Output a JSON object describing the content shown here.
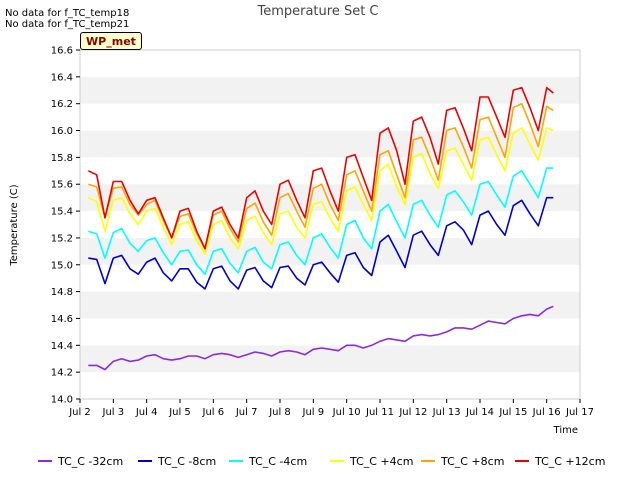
{
  "no_data_notes": [
    "No data for f_TC_temp18",
    "No data for f_TC_temp21"
  ],
  "station_label": "WP_met",
  "chart_data": {
    "type": "line",
    "title": "Temperature Set C",
    "xlabel": "Time",
    "ylabel": "Temperature (C)",
    "xlim": [
      2,
      17
    ],
    "ylim": [
      14.0,
      16.6
    ],
    "x_ticks": [
      2,
      3,
      4,
      5,
      6,
      7,
      8,
      9,
      10,
      11,
      12,
      13,
      14,
      15,
      16,
      17
    ],
    "x_tick_labels": [
      "Jul 2",
      "Jul 3",
      "Jul 4",
      "Jul 5",
      "Jul 6",
      "Jul 7",
      "Jul 8",
      "Jul 9",
      "Jul 10",
      "Jul 11",
      "Jul 12",
      "Jul 13",
      "Jul 14",
      "Jul 15",
      "Jul 16",
      "Jul 17"
    ],
    "y_ticks": [
      14.0,
      14.2,
      14.4,
      14.6,
      14.8,
      15.0,
      15.2,
      15.4,
      15.6,
      15.8,
      16.0,
      16.2,
      16.4,
      16.6
    ],
    "y_tick_labels": [
      "14.0",
      "14.2",
      "14.4",
      "14.6",
      "14.8",
      "15.0",
      "15.2",
      "15.4",
      "15.6",
      "15.8",
      "16.0",
      "16.2",
      "16.4",
      "16.6"
    ],
    "grid": "horizontal-bands",
    "legend_position": "bottom",
    "x": [
      2.25,
      2.5,
      2.75,
      3.0,
      3.25,
      3.5,
      3.75,
      4.0,
      4.25,
      4.5,
      4.75,
      5.0,
      5.25,
      5.5,
      5.75,
      6.0,
      6.25,
      6.5,
      6.75,
      7.0,
      7.25,
      7.5,
      7.75,
      8.0,
      8.25,
      8.5,
      8.75,
      9.0,
      9.25,
      9.5,
      9.75,
      10.0,
      10.25,
      10.5,
      10.75,
      11.0,
      11.25,
      11.5,
      11.75,
      12.0,
      12.25,
      12.5,
      12.75,
      13.0,
      13.25,
      13.5,
      13.75,
      14.0,
      14.25,
      14.5,
      14.75,
      15.0,
      15.25,
      15.5,
      15.75,
      16.0,
      16.2
    ],
    "series": [
      {
        "name": "TC_C -32cm",
        "color": "#8a2be2",
        "values": [
          14.25,
          14.25,
          14.22,
          14.28,
          14.3,
          14.28,
          14.29,
          14.32,
          14.33,
          14.3,
          14.29,
          14.3,
          14.32,
          14.32,
          14.3,
          14.33,
          14.34,
          14.33,
          14.31,
          14.33,
          14.35,
          14.34,
          14.32,
          14.35,
          14.36,
          14.35,
          14.33,
          14.37,
          14.38,
          14.37,
          14.36,
          14.4,
          14.4,
          14.38,
          14.4,
          14.43,
          14.45,
          14.44,
          14.43,
          14.47,
          14.48,
          14.47,
          14.48,
          14.5,
          14.53,
          14.53,
          14.52,
          14.55,
          14.58,
          14.57,
          14.56,
          14.6,
          14.62,
          14.63,
          14.62,
          14.67,
          14.69
        ]
      },
      {
        "name": "TC_C -8cm",
        "color": "#0000cd",
        "values": [
          15.05,
          15.04,
          14.86,
          15.05,
          15.07,
          14.97,
          14.93,
          15.02,
          15.05,
          14.94,
          14.88,
          14.97,
          14.97,
          14.87,
          14.82,
          14.97,
          14.99,
          14.88,
          14.82,
          14.96,
          14.98,
          14.88,
          14.83,
          14.98,
          14.99,
          14.9,
          14.85,
          15.0,
          15.02,
          14.94,
          14.87,
          15.07,
          15.09,
          14.98,
          14.92,
          15.17,
          15.22,
          15.1,
          14.98,
          15.22,
          15.25,
          15.15,
          15.07,
          15.29,
          15.32,
          15.26,
          15.15,
          15.37,
          15.4,
          15.3,
          15.22,
          15.44,
          15.48,
          15.38,
          15.29,
          15.5,
          15.5
        ]
      },
      {
        "name": "TC_C -4cm",
        "color": "#00ffff",
        "values": [
          15.25,
          15.23,
          15.05,
          15.24,
          15.27,
          15.16,
          15.1,
          15.18,
          15.2,
          15.09,
          15.0,
          15.1,
          15.11,
          15.0,
          14.93,
          15.1,
          15.12,
          15.01,
          14.94,
          15.1,
          15.13,
          15.02,
          14.97,
          15.15,
          15.17,
          15.07,
          15.0,
          15.2,
          15.23,
          15.13,
          15.05,
          15.3,
          15.33,
          15.2,
          15.12,
          15.4,
          15.45,
          15.32,
          15.2,
          15.45,
          15.48,
          15.37,
          15.28,
          15.52,
          15.55,
          15.47,
          15.37,
          15.6,
          15.62,
          15.52,
          15.43,
          15.66,
          15.7,
          15.6,
          15.5,
          15.72,
          15.72
        ]
      },
      {
        "name": "TC_C +4cm",
        "color": "#ffff00",
        "values": [
          15.5,
          15.47,
          15.25,
          15.48,
          15.5,
          15.38,
          15.3,
          15.4,
          15.42,
          15.28,
          15.15,
          15.3,
          15.32,
          15.18,
          15.08,
          15.3,
          15.33,
          15.2,
          15.12,
          15.33,
          15.36,
          15.24,
          15.15,
          15.38,
          15.4,
          15.28,
          15.2,
          15.45,
          15.47,
          15.35,
          15.25,
          15.55,
          15.58,
          15.45,
          15.33,
          15.7,
          15.75,
          15.58,
          15.45,
          15.8,
          15.83,
          15.68,
          15.57,
          15.85,
          15.87,
          15.75,
          15.63,
          15.93,
          15.95,
          15.82,
          15.7,
          15.98,
          16.02,
          15.9,
          15.78,
          16.02,
          16.0
        ]
      },
      {
        "name": "TC_C +8cm",
        "color": "#ffa500",
        "values": [
          15.6,
          15.58,
          15.35,
          15.57,
          15.58,
          15.45,
          15.37,
          15.45,
          15.48,
          15.33,
          15.2,
          15.36,
          15.38,
          15.23,
          15.12,
          15.37,
          15.4,
          15.27,
          15.17,
          15.42,
          15.46,
          15.32,
          15.22,
          15.5,
          15.53,
          15.4,
          15.28,
          15.57,
          15.6,
          15.45,
          15.33,
          15.67,
          15.7,
          15.55,
          15.4,
          15.82,
          15.85,
          15.67,
          15.5,
          15.93,
          15.95,
          15.8,
          15.63,
          16.0,
          16.02,
          15.88,
          15.72,
          16.08,
          16.1,
          15.95,
          15.8,
          16.17,
          16.2,
          16.05,
          15.88,
          16.18,
          16.15
        ]
      },
      {
        "name": "TC_C +12cm",
        "color": "#ee0000",
        "values": [
          15.7,
          15.67,
          15.35,
          15.62,
          15.62,
          15.48,
          15.38,
          15.48,
          15.5,
          15.35,
          15.2,
          15.4,
          15.42,
          15.25,
          15.12,
          15.4,
          15.43,
          15.3,
          15.2,
          15.5,
          15.55,
          15.4,
          15.3,
          15.6,
          15.63,
          15.48,
          15.35,
          15.7,
          15.72,
          15.55,
          15.4,
          15.8,
          15.82,
          15.65,
          15.48,
          15.98,
          16.02,
          15.85,
          15.6,
          16.07,
          16.1,
          15.95,
          15.75,
          16.15,
          16.17,
          16.02,
          15.85,
          16.25,
          16.25,
          16.1,
          15.95,
          16.3,
          16.32,
          16.17,
          16.0,
          16.32,
          16.28
        ]
      }
    ]
  }
}
